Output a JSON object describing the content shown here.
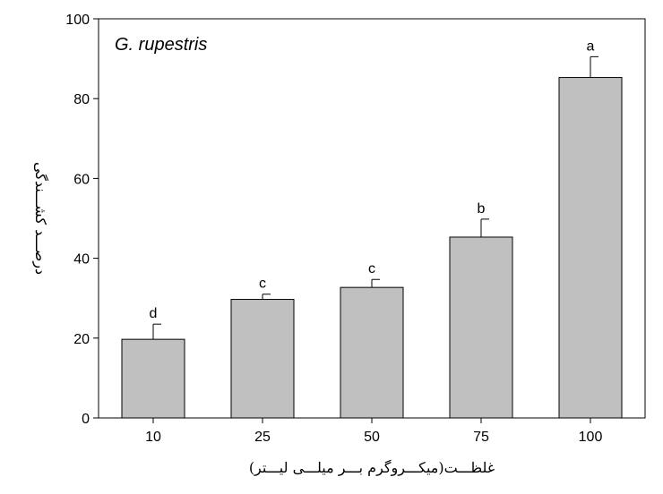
{
  "chart_data": {
    "type": "bar",
    "panel_label": "G. rupestris",
    "xlabel": "غلظـــت(میکـــروگرم بـــر میلـــی  لیـــتر)",
    "ylabel": "درصـــد کشـــندگی",
    "categories": [
      "10",
      "25",
      "50",
      "75",
      "100"
    ],
    "values": [
      19.7,
      29.7,
      32.7,
      45.3,
      85.3
    ],
    "errors": [
      3.8,
      1.3,
      2.0,
      4.5,
      5.2
    ],
    "significance": [
      "d",
      "c",
      "c",
      "b",
      "a"
    ],
    "ylim": [
      0,
      100
    ],
    "yticks": [
      0,
      20,
      40,
      60,
      80,
      100
    ],
    "bar_color": "#c0c0c0",
    "grid": false
  }
}
